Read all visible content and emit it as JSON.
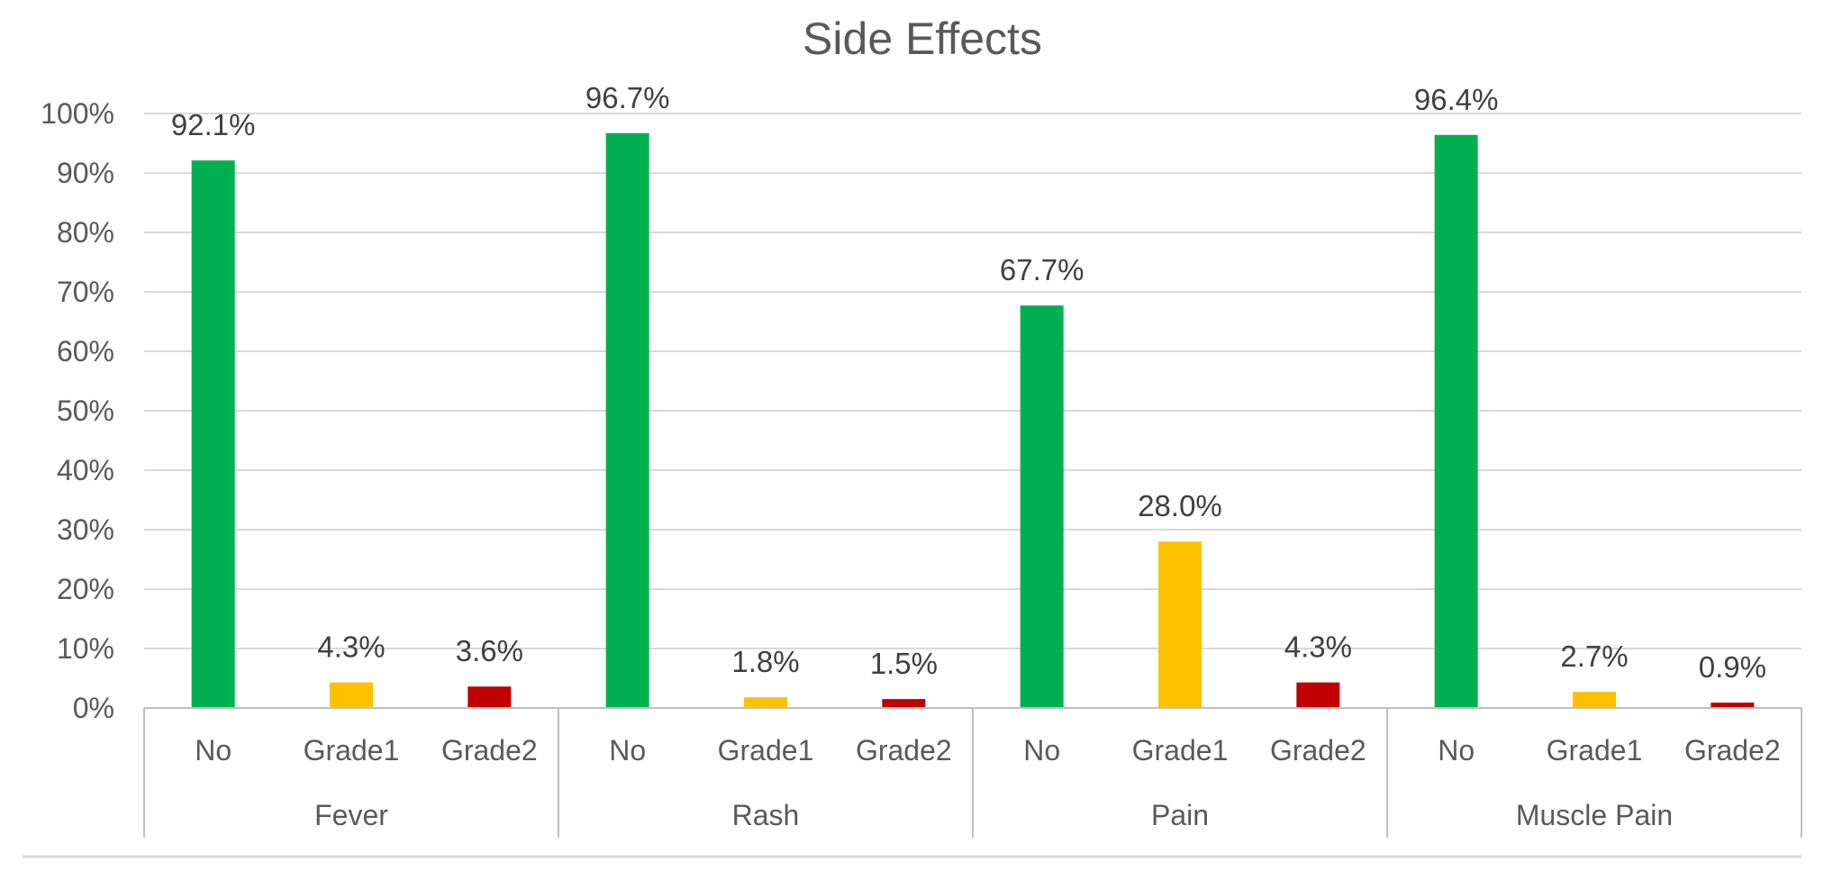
{
  "chart_data": {
    "type": "bar",
    "title": "Side Effects",
    "xlabel": "",
    "ylabel": "",
    "ylim": [
      0,
      100
    ],
    "yticks": [
      "0%",
      "10%",
      "20%",
      "30%",
      "40%",
      "50%",
      "60%",
      "70%",
      "80%",
      "90%",
      "100%"
    ],
    "grid": true,
    "groups": [
      {
        "name": "Fever",
        "bars": [
          {
            "category": "No",
            "value": 92.1,
            "label": "92.1%",
            "color": "#00b050"
          },
          {
            "category": "Grade1",
            "value": 4.3,
            "label": "4.3%",
            "color": "#ffc000"
          },
          {
            "category": "Grade2",
            "value": 3.6,
            "label": "3.6%",
            "color": "#c00000"
          }
        ]
      },
      {
        "name": "Rash",
        "bars": [
          {
            "category": "No",
            "value": 96.7,
            "label": "96.7%",
            "color": "#00b050"
          },
          {
            "category": "Grade1",
            "value": 1.8,
            "label": "1.8%",
            "color": "#ffc000"
          },
          {
            "category": "Grade2",
            "value": 1.5,
            "label": "1.5%",
            "color": "#c00000"
          }
        ]
      },
      {
        "name": "Pain",
        "bars": [
          {
            "category": "No",
            "value": 67.7,
            "label": "67.7%",
            "color": "#00b050"
          },
          {
            "category": "Grade1",
            "value": 28.0,
            "label": "28.0%",
            "color": "#ffc000"
          },
          {
            "category": "Grade2",
            "value": 4.3,
            "label": "4.3%",
            "color": "#c00000"
          }
        ]
      },
      {
        "name": "Muscle Pain",
        "bars": [
          {
            "category": "No",
            "value": 96.4,
            "label": "96.4%",
            "color": "#00b050"
          },
          {
            "category": "Grade1",
            "value": 2.7,
            "label": "2.7%",
            "color": "#ffc000"
          },
          {
            "category": "Grade2",
            "value": 0.9,
            "label": "0.9%",
            "color": "#c00000"
          }
        ]
      }
    ],
    "colors": {
      "grid": "#d9d9d9",
      "axis": "#bfbfbf",
      "text": "#595959"
    }
  }
}
